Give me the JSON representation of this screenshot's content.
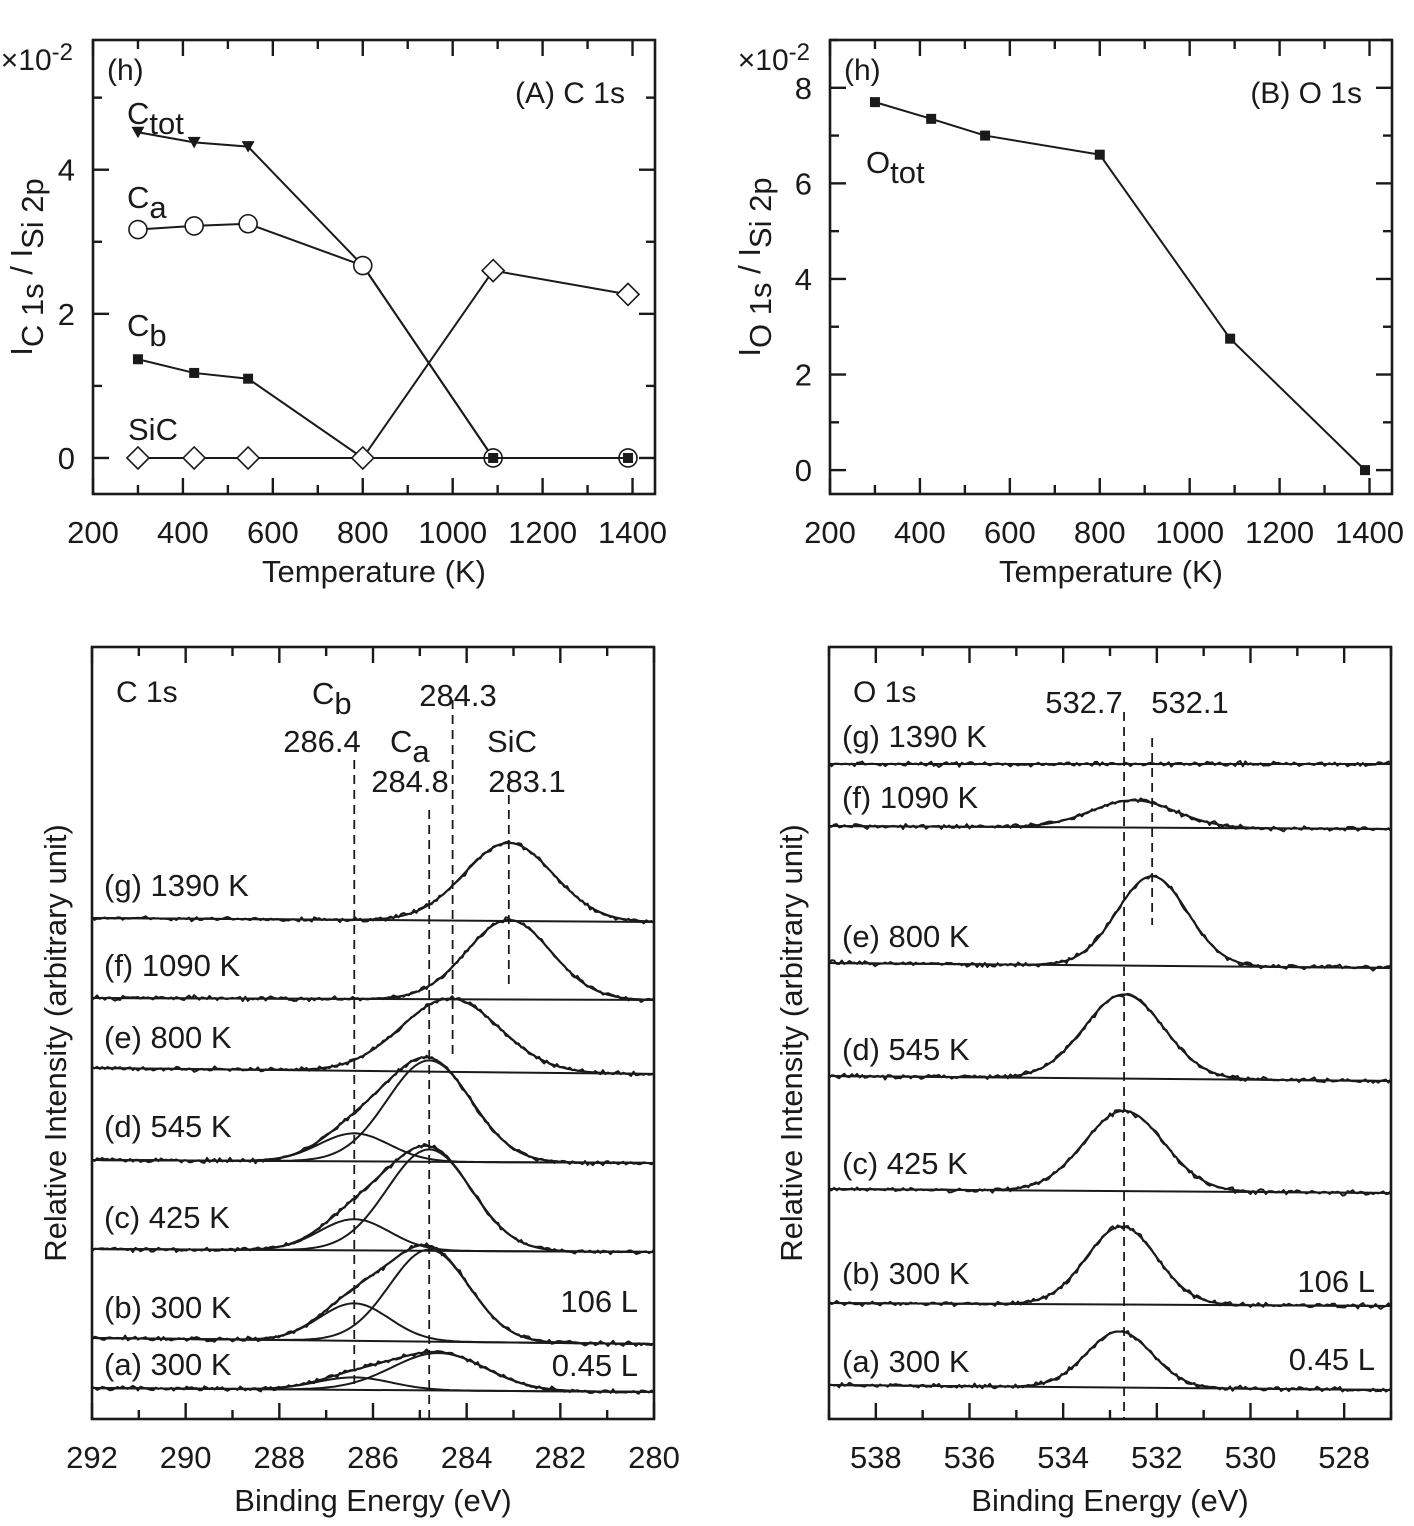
{
  "chart_data": [
    {
      "id": "A",
      "type": "line",
      "panel_label": "(h)",
      "title": "(A) C 1s",
      "xlabel": "Temperature (K)",
      "ylabel": {
        "main": "I",
        "sub1": "C 1s",
        "mid": " / I",
        "sub2": "Si 2p"
      },
      "y_multiplier": "×10",
      "y_multiplier_exp": "-2",
      "xlim": [
        200,
        1450
      ],
      "ylim": [
        -0.5,
        5.8
      ],
      "xticks": [
        200,
        400,
        600,
        800,
        1000,
        1200,
        1400
      ],
      "yticks": [
        0,
        2,
        4
      ],
      "series": [
        {
          "name": "C",
          "name_sub": "tot",
          "marker": "triangle-down",
          "x": [
            300,
            425,
            545,
            800,
            1090,
            1390
          ],
          "y": [
            4.52,
            4.38,
            4.32,
            2.67,
            0.0,
            0.0
          ]
        },
        {
          "name": "C",
          "name_sub": "a",
          "marker": "circle-open",
          "x": [
            300,
            425,
            545,
            800,
            1090,
            1390
          ],
          "y": [
            3.17,
            3.22,
            3.25,
            2.67,
            0.0,
            0.0
          ]
        },
        {
          "name": "C",
          "name_sub": "b",
          "marker": "square",
          "x": [
            300,
            425,
            545,
            800,
            1090,
            1390
          ],
          "y": [
            1.37,
            1.18,
            1.1,
            0.0,
            0.0,
            0.0
          ]
        },
        {
          "name": "SiC",
          "name_sub": "",
          "marker": "diamond-open",
          "x": [
            300,
            425,
            545,
            800,
            1090,
            1390
          ],
          "y": [
            0.0,
            0.0,
            0.0,
            0.0,
            2.6,
            2.27
          ]
        }
      ]
    },
    {
      "id": "B",
      "type": "line",
      "panel_label": "(h)",
      "title": "(B) O 1s",
      "xlabel": "Temperature (K)",
      "ylabel": {
        "main": "I",
        "sub1": "O 1s",
        "mid": " / I",
        "sub2": "Si 2p"
      },
      "y_multiplier": "×10",
      "y_multiplier_exp": "-2",
      "xlim": [
        200,
        1450
      ],
      "ylim": [
        -0.5,
        9.0
      ],
      "xticks": [
        200,
        400,
        600,
        800,
        1000,
        1200,
        1400
      ],
      "yticks": [
        0,
        2,
        4,
        6,
        8
      ],
      "series": [
        {
          "name": "O",
          "name_sub": "tot",
          "marker": "square",
          "x": [
            300,
            425,
            545,
            800,
            1090,
            1390
          ],
          "y": [
            7.7,
            7.35,
            7.0,
            6.6,
            2.75,
            0.0
          ]
        }
      ]
    },
    {
      "id": "C",
      "type": "line",
      "title": "C 1s",
      "xlabel": "Binding Energy (eV)",
      "ylabel": "Relative Intensity (arbitrary unit)",
      "xlim": [
        292,
        280
      ],
      "xticks": [
        292,
        290,
        288,
        286,
        284,
        282,
        280
      ],
      "peak_markers": [
        {
          "name": "C",
          "name_sub": "b",
          "value": "286.4",
          "x": 286.4
        },
        {
          "name": "C",
          "name_sub": "a",
          "value": "284.8",
          "x": 284.8
        },
        {
          "name": "",
          "name_sub": "",
          "value": "284.3",
          "x": 284.3
        },
        {
          "name": "SiC",
          "name_sub": "",
          "value": "283.1",
          "x": 283.1
        }
      ],
      "spectra": [
        {
          "label": "(g) 1390 K",
          "peaks": [
            {
              "center": 283.1,
              "height": 1.0,
              "width": 0.95
            }
          ]
        },
        {
          "label": "(f) 1090 K",
          "peaks": [
            {
              "center": 283.1,
              "height": 1.02,
              "width": 0.9
            }
          ]
        },
        {
          "label": "(e) 800 K",
          "peaks": [
            {
              "center": 284.35,
              "height": 0.94,
              "width": 1.05
            }
          ]
        },
        {
          "label": "(d) 545 K",
          "peaks": [
            {
              "center": 284.8,
              "height": 1.3,
              "width": 0.9
            },
            {
              "center": 286.4,
              "height": 0.36,
              "width": 0.75
            }
          ]
        },
        {
          "label": "(c) 425 K",
          "peaks": [
            {
              "center": 284.8,
              "height": 1.3,
              "width": 0.9
            },
            {
              "center": 286.4,
              "height": 0.4,
              "width": 0.75
            }
          ]
        },
        {
          "label": "(b) 300 K",
          "extra": "106 L",
          "peaks": [
            {
              "center": 284.8,
              "height": 1.18,
              "width": 0.85
            },
            {
              "center": 286.4,
              "height": 0.48,
              "width": 0.75
            }
          ]
        },
        {
          "label": "(a) 300 K",
          "extra": "0.45 L",
          "peaks": [
            {
              "center": 284.6,
              "height": 0.48,
              "width": 1.0
            },
            {
              "center": 286.4,
              "height": 0.16,
              "width": 0.8
            }
          ]
        }
      ]
    },
    {
      "id": "D",
      "type": "line",
      "title": "O 1s",
      "xlabel": "Binding Energy (eV)",
      "ylabel": "Relative Intensity (arbitrary unit)",
      "xlim": [
        539,
        527
      ],
      "xticks": [
        538,
        536,
        534,
        532,
        530,
        528
      ],
      "peak_markers": [
        {
          "value": "532.7",
          "x": 532.7
        },
        {
          "value": "532.1",
          "x": 532.1
        }
      ],
      "spectra": [
        {
          "label": "(g) 1390 K",
          "peaks": []
        },
        {
          "label": "(f) 1090 K",
          "peaks": [
            {
              "center": 532.5,
              "height": 0.35,
              "width": 0.9
            }
          ]
        },
        {
          "label": "(e) 800 K",
          "peaks": [
            {
              "center": 532.1,
              "height": 1.15,
              "width": 0.75
            }
          ]
        },
        {
          "label": "(d) 545 K",
          "peaks": [
            {
              "center": 532.7,
              "height": 1.08,
              "width": 0.85
            }
          ]
        },
        {
          "label": "(c) 425 K",
          "peaks": [
            {
              "center": 532.7,
              "height": 1.03,
              "width": 0.85
            }
          ]
        },
        {
          "label": "(b) 300 K",
          "extra": "106 L",
          "peaks": [
            {
              "center": 532.75,
              "height": 1.0,
              "width": 0.75
            }
          ]
        },
        {
          "label": "(a) 300 K",
          "extra": "0.45 L",
          "peaks": [
            {
              "center": 532.8,
              "height": 0.72,
              "width": 0.7
            }
          ]
        }
      ]
    }
  ]
}
